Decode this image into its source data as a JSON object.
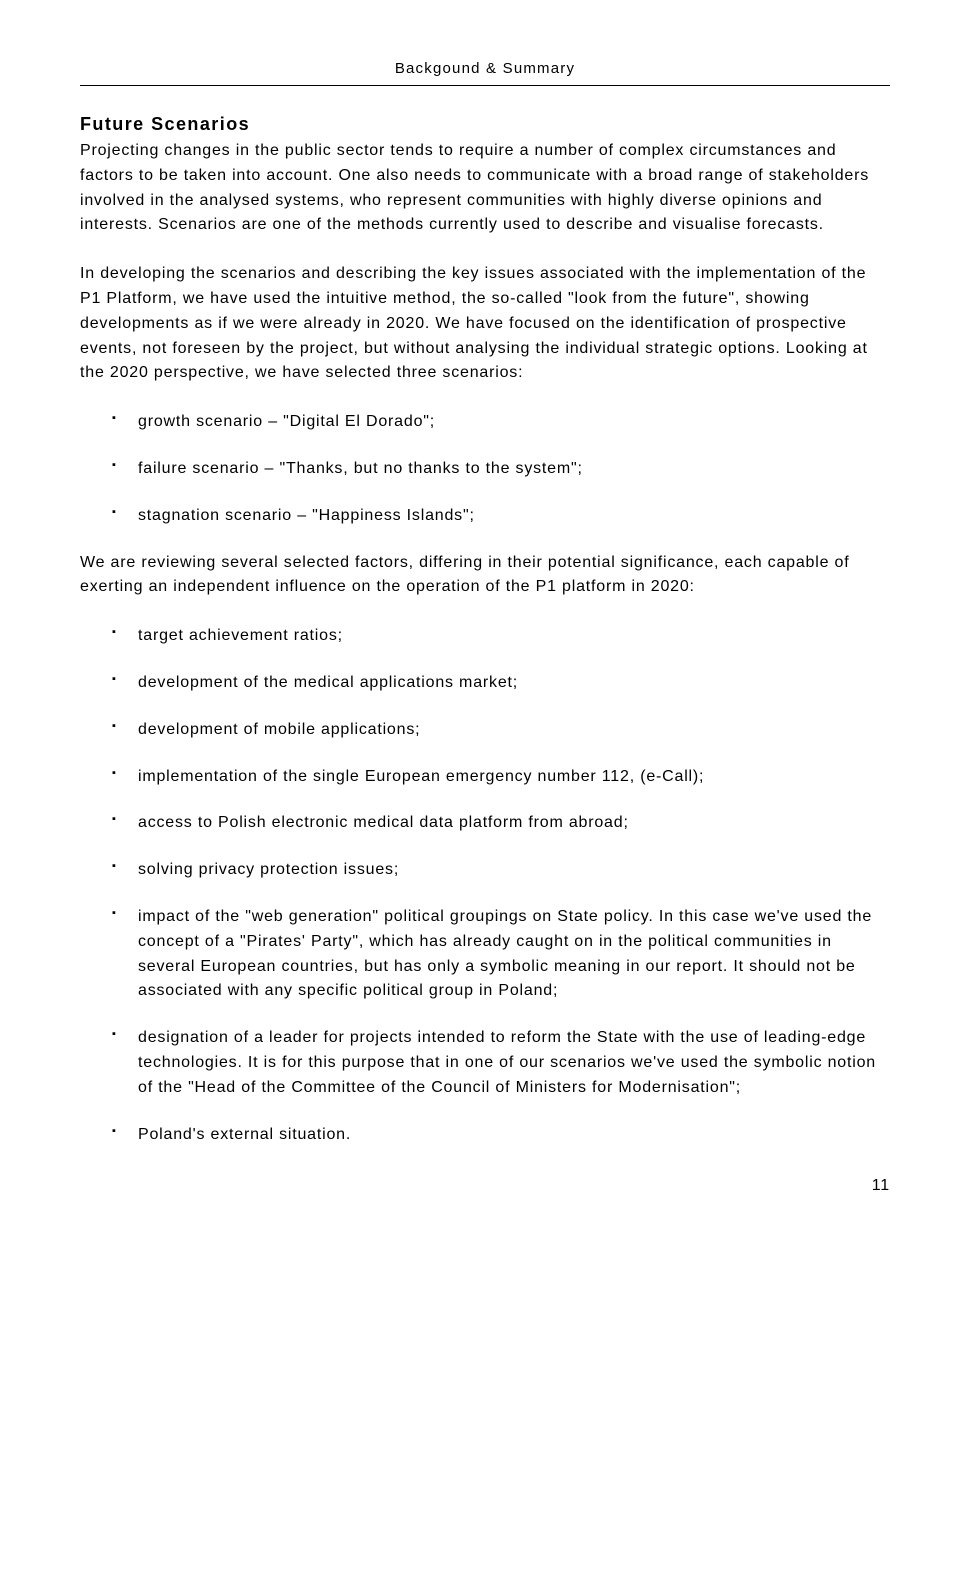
{
  "header": "Backgound & Summary",
  "sectionTitle": "Future Scenarios",
  "para1": "Projecting changes in the public sector tends to require a number of complex circumstances and factors to be taken into account. One also needs to communicate with a broad range of stakeholders involved in the analysed systems, who represent communities with highly diverse opinions and interests. Scenarios are one of the methods currently used to describe and visualise forecasts.",
  "para2": "In developing the scenarios and describing the key issues associated with the implementation of the P1 Platform, we have used the intuitive method, the so-called \"look from the future\", showing developments as if we were already in 2020. We have focused on the identification of prospective events, not foreseen by the project, but without analysing the individual strategic options. Looking at the 2020 perspective, we have selected three scenarios:",
  "list1": [
    "growth scenario – \"Digital El Dorado\";",
    "failure scenario – \"Thanks, but no thanks to the system\";",
    "stagnation scenario – \"Happiness Islands\";"
  ],
  "para3": "We are reviewing several selected factors, differing in their potential significance, each capable of exerting an independent influence on the operation of the P1 platform in 2020:",
  "list2": [
    "target achievement ratios;",
    "development of the medical applications market;",
    "development of mobile applications;",
    "implementation of the single European emergency number 112,  (e-Call);",
    "access to Polish electronic medical data platform from abroad;",
    "solving privacy protection issues;",
    "impact of the \"web generation\" political groupings on State policy. In this case we've used the concept of a \"Pirates' Party\", which has already caught on in the political communities in several European countries, but has only a symbolic meaning in our report. It should not be associated with any specific political group in Poland;",
    "designation of a leader for projects intended to reform the State with the use of leading-edge technologies. It is for this purpose that in one of our scenarios we've used the symbolic notion of the \"Head of the Committee of the Council of Ministers for Modernisation\";",
    "Poland's external situation."
  ],
  "pageNumber": "11"
}
